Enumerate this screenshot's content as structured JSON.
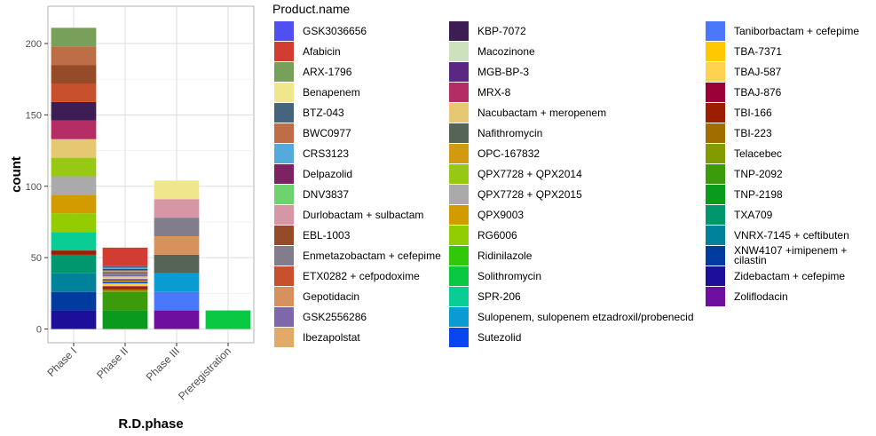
{
  "chart_data": {
    "type": "bar",
    "stacked": true,
    "xlabel": "R.D.phase",
    "ylabel": "count",
    "categories": [
      "Phase I",
      "Phase II",
      "Phase III",
      "Preregistration"
    ],
    "ylim": [
      -10,
      220
    ],
    "yticks": [
      0,
      50,
      100,
      150,
      200
    ],
    "legend_title": "Product.name",
    "legend_position": "right",
    "series": [
      {
        "name": "GSK3036656",
        "color": "#5050F0",
        "values": [
          0,
          0,
          0,
          0
        ]
      },
      {
        "name": "Afabicin",
        "color": "#D23C32",
        "values": [
          0,
          13,
          0,
          0
        ]
      },
      {
        "name": "ARX-1796",
        "color": "#78A05A",
        "values": [
          13,
          0,
          0,
          0
        ]
      },
      {
        "name": "Benapenem",
        "color": "#F0E68C",
        "values": [
          0,
          0,
          13,
          0
        ]
      },
      {
        "name": "BTZ-043",
        "color": "#46647D",
        "values": [
          0,
          1,
          0,
          0
        ]
      },
      {
        "name": "BWC0977",
        "color": "#BE6E46",
        "values": [
          13,
          0,
          0,
          0
        ]
      },
      {
        "name": "CRS3123",
        "color": "#55AADC",
        "values": [
          0,
          1,
          0,
          0
        ]
      },
      {
        "name": "Delpazolid",
        "color": "#7D2364",
        "values": [
          0,
          1,
          0,
          0
        ]
      },
      {
        "name": "DNV3837",
        "color": "#6ED26E",
        "values": [
          0,
          1,
          0,
          0
        ]
      },
      {
        "name": "Durlobactam + sulbactam",
        "color": "#D796A5",
        "values": [
          0,
          0,
          13,
          0
        ]
      },
      {
        "name": "EBL-1003",
        "color": "#964B28",
        "values": [
          13,
          1,
          0,
          0
        ]
      },
      {
        "name": "Enmetazobactam + cefepime",
        "color": "#827D8C",
        "values": [
          0,
          1,
          13,
          0
        ]
      },
      {
        "name": "ETX0282 + cefpodoxime",
        "color": "#C8502D",
        "values": [
          13,
          0,
          0,
          0
        ]
      },
      {
        "name": "Gepotidacin",
        "color": "#D7915F",
        "values": [
          0,
          0,
          13,
          0
        ]
      },
      {
        "name": "GSK2556286",
        "color": "#7D69AA",
        "values": [
          0,
          1,
          0,
          0
        ]
      },
      {
        "name": "Ibezapolstat",
        "color": "#E1AA69",
        "values": [
          0,
          1,
          0,
          0
        ]
      },
      {
        "name": "KBP-7072",
        "color": "#3C1E55",
        "values": [
          13,
          0,
          0,
          0
        ]
      },
      {
        "name": "Macozinone",
        "color": "#CDE1BE",
        "values": [
          0,
          1,
          0,
          0
        ]
      },
      {
        "name": "MGB-BP-3",
        "color": "#5A2882",
        "values": [
          0,
          1,
          0,
          0
        ]
      },
      {
        "name": "MRX-8",
        "color": "#B42D64",
        "values": [
          13,
          0,
          0,
          0
        ]
      },
      {
        "name": "Nacubactam + meropenem",
        "color": "#E6C873",
        "values": [
          13,
          0,
          0,
          0
        ]
      },
      {
        "name": "Nafithromycin",
        "color": "#556455",
        "values": [
          0,
          0,
          13,
          0
        ]
      },
      {
        "name": "OPC-167832",
        "color": "#D29B0F",
        "values": [
          0,
          1,
          0,
          0
        ]
      },
      {
        "name": "QPX7728 + QPX2014",
        "color": "#96C814",
        "values": [
          13,
          0,
          0,
          0
        ]
      },
      {
        "name": "QPX7728 + QPX2015",
        "color": "#AAAAAA",
        "values": [
          13,
          0,
          0,
          0
        ]
      },
      {
        "name": "QPX9003",
        "color": "#D29B00",
        "values": [
          13,
          0,
          0,
          0
        ]
      },
      {
        "name": "RG6006",
        "color": "#91CD00",
        "values": [
          13,
          0,
          0,
          0
        ]
      },
      {
        "name": "Ridinilazole",
        "color": "#32C80A",
        "values": [
          0,
          0,
          0,
          0
        ]
      },
      {
        "name": "Solithromycin",
        "color": "#0AC841",
        "values": [
          0,
          0,
          0,
          13
        ]
      },
      {
        "name": "SPR-206",
        "color": "#0ACD96",
        "values": [
          13,
          0,
          0,
          0
        ]
      },
      {
        "name": "Sulopenem, sulopenem etzadroxil/probenecid",
        "color": "#0A9BD2",
        "values": [
          0,
          0,
          13,
          0
        ]
      },
      {
        "name": "Sutezolid",
        "color": "#0A46F0",
        "values": [
          0,
          1,
          0,
          0
        ]
      },
      {
        "name": "Taniborbactam + cefepime",
        "color": "#4B78FA",
        "values": [
          0,
          0,
          13,
          0
        ]
      },
      {
        "name": "TBA-7371",
        "color": "#FFC800",
        "values": [
          0,
          1,
          0,
          0
        ]
      },
      {
        "name": "TBAJ-587",
        "color": "#FFD250",
        "values": [
          0,
          1,
          0,
          0
        ]
      },
      {
        "name": "TBAJ-876",
        "color": "#9B0037",
        "values": [
          0,
          1,
          0,
          0
        ]
      },
      {
        "name": "TBI-166",
        "color": "#9B1E00",
        "values": [
          3,
          1,
          0,
          0
        ]
      },
      {
        "name": "TBI-223",
        "color": "#A06E00",
        "values": [
          0,
          1,
          0,
          0
        ]
      },
      {
        "name": "Telacebec",
        "color": "#829B00",
        "values": [
          0,
          1,
          0,
          0
        ]
      },
      {
        "name": "TNP-2092",
        "color": "#3C9B0A",
        "values": [
          0,
          13,
          0,
          0
        ]
      },
      {
        "name": "TNP-2198",
        "color": "#0A9B1E",
        "values": [
          0,
          13,
          0,
          0
        ]
      },
      {
        "name": "TXA709",
        "color": "#00966E",
        "values": [
          13,
          0,
          0,
          0
        ]
      },
      {
        "name": "VNRX-7145 + ceftibuten",
        "color": "#00829B",
        "values": [
          13,
          0,
          0,
          0
        ]
      },
      {
        "name": "XNW4107 +imipenem + cilastin",
        "color": "#003CA0",
        "values": [
          13,
          0,
          0,
          0
        ]
      },
      {
        "name": "Zidebactam + cefepime",
        "color": "#1E0F9B",
        "values": [
          13,
          0,
          0,
          0
        ]
      },
      {
        "name": "Zoliflodacin",
        "color": "#6E0FA0",
        "values": [
          0,
          0,
          13,
          0
        ]
      }
    ]
  }
}
